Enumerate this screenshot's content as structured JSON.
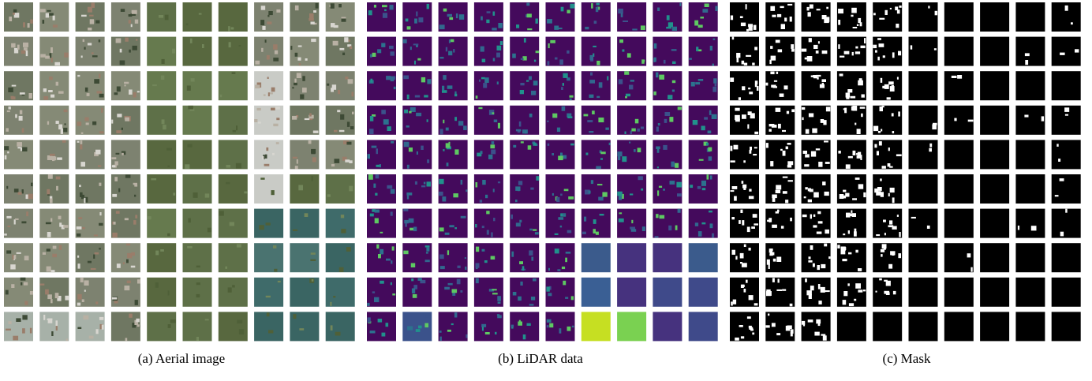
{
  "panels": [
    {
      "caption": "(a) Aerial image"
    },
    {
      "caption": "(b) LiDAR data"
    },
    {
      "caption": "(c) Mask"
    }
  ]
}
